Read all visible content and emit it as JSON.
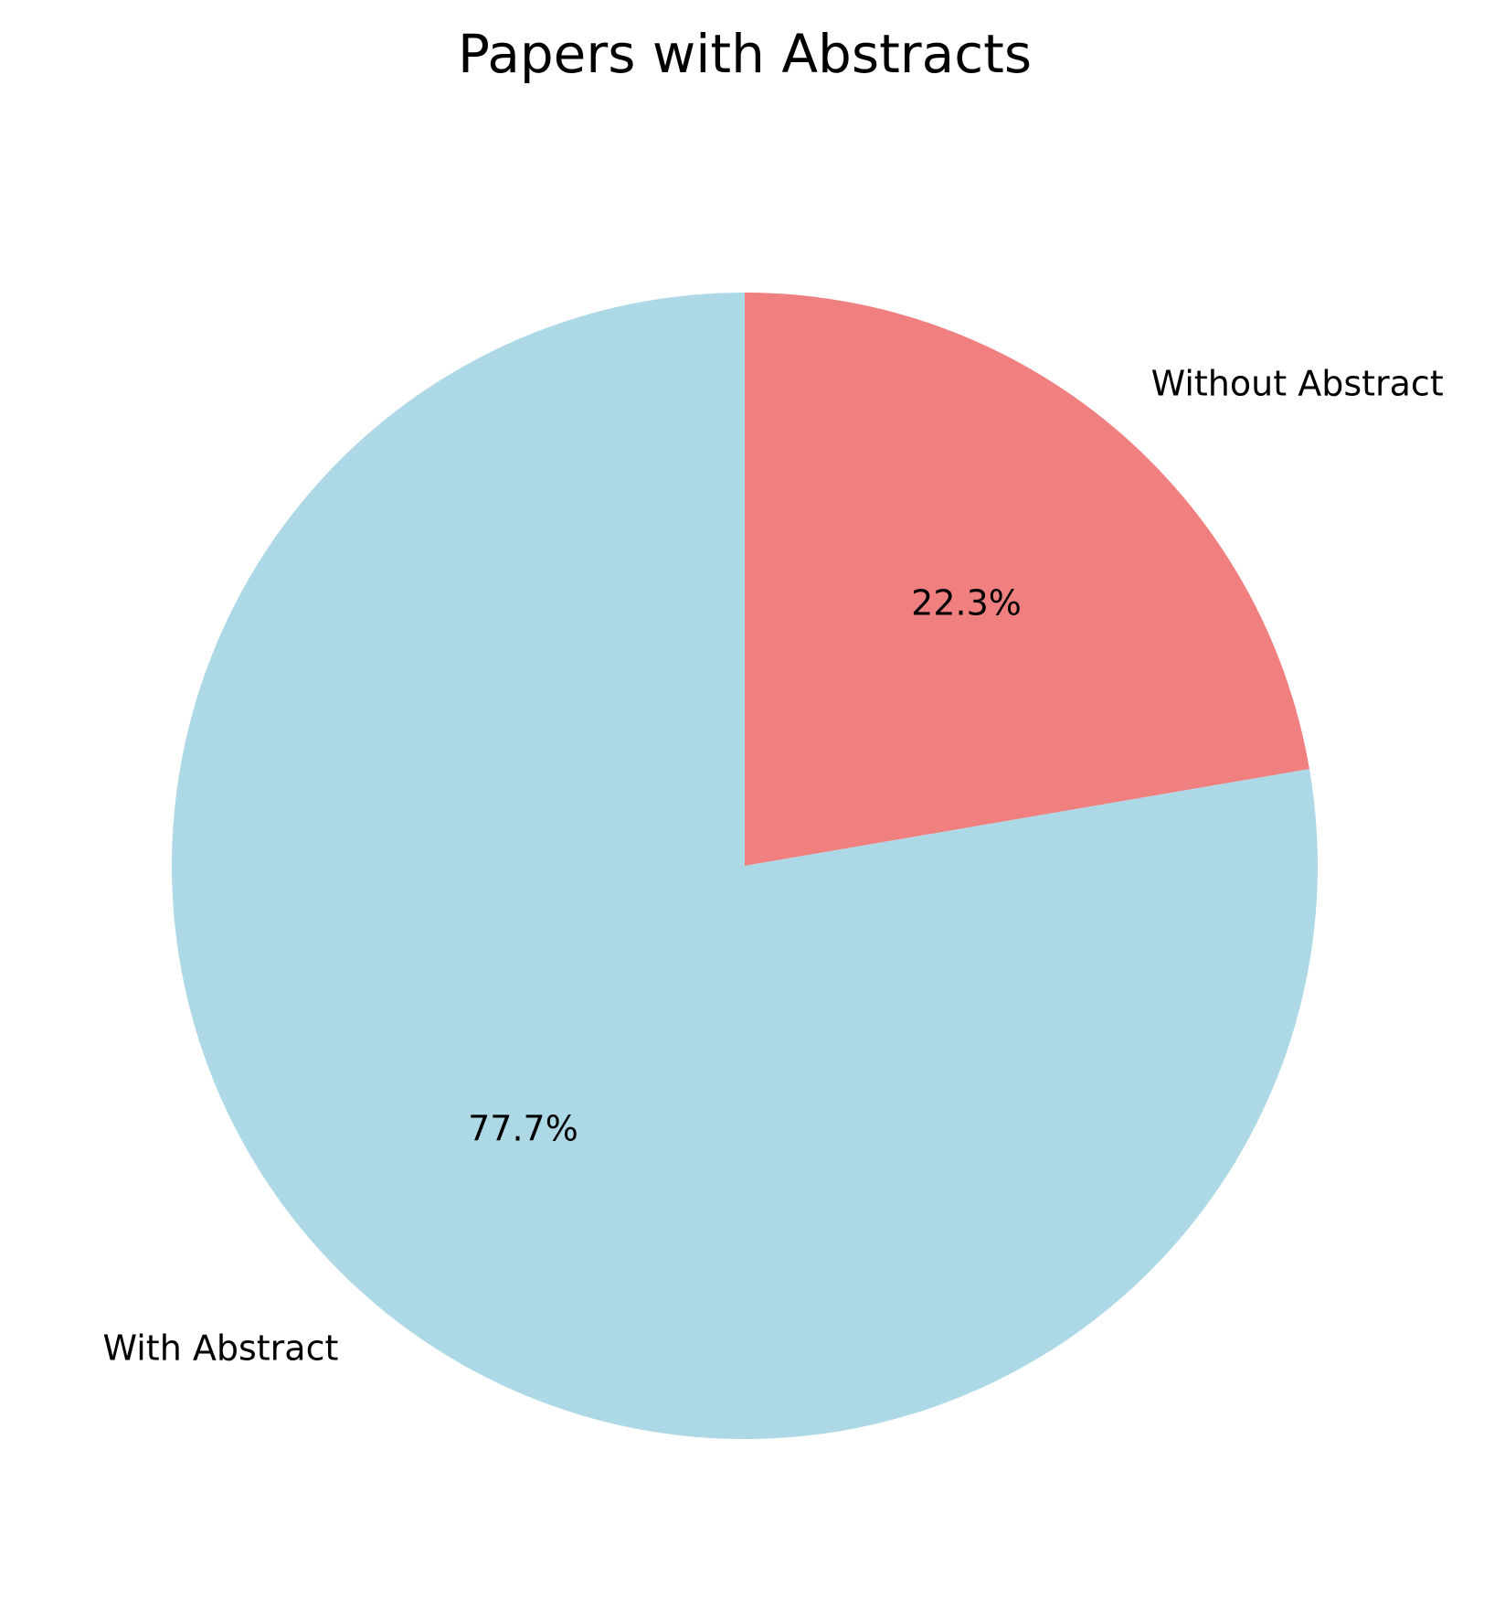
{
  "chart_data": {
    "type": "pie",
    "title": "Papers with Abstracts",
    "start_angle_deg": 90,
    "direction": "clockwise",
    "slices": [
      {
        "label": "Without Abstract",
        "value": 22.3,
        "pct_label": "22.3%",
        "color": "#F08080"
      },
      {
        "label": "With Abstract",
        "value": 77.7,
        "pct_label": "77.7%",
        "color": "#ADD8E6"
      }
    ]
  }
}
